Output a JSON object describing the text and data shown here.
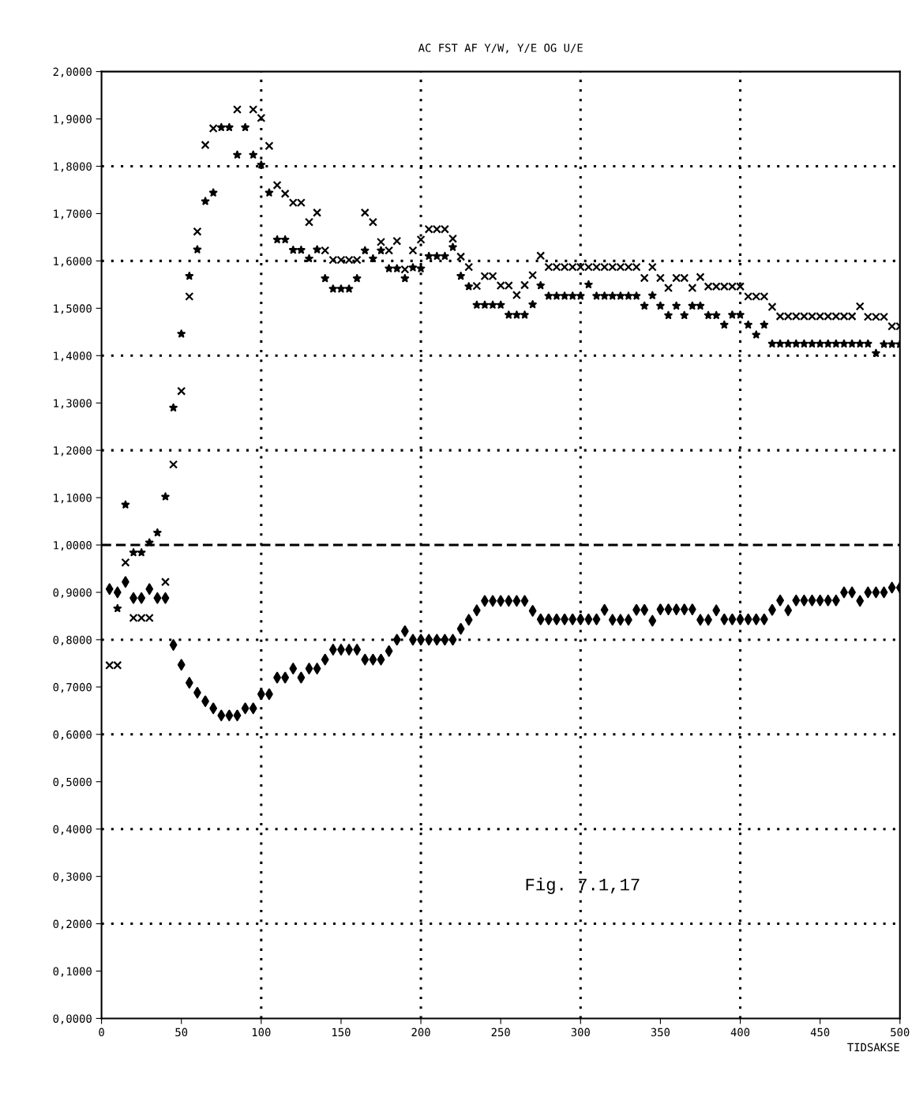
{
  "chart_data": {
    "type": "scatter",
    "title": "AC FST AF Y/W, Y/E OG U/E",
    "xlabel": "TIDSAKSE",
    "annotations": [
      "Fig. 7.1,17"
    ],
    "xlim": [
      0,
      500
    ],
    "ylim": [
      0,
      2
    ],
    "xticks": [
      0,
      50,
      100,
      150,
      200,
      250,
      300,
      350,
      400,
      450,
      500
    ],
    "yticks": [
      {
        "value": 0,
        "label": "0,0000"
      },
      {
        "value": 0.1,
        "label": "0,1000"
      },
      {
        "value": 0.2,
        "label": "0,2000"
      },
      {
        "value": 0.3,
        "label": "0,3000"
      },
      {
        "value": 0.4,
        "label": "0,4000"
      },
      {
        "value": 0.5,
        "label": "0,5000"
      },
      {
        "value": 0.6,
        "label": "0,6000"
      },
      {
        "value": 0.7,
        "label": "0,7000"
      },
      {
        "value": 0.8,
        "label": "0,8000"
      },
      {
        "value": 0.9,
        "label": "0,9000"
      },
      {
        "value": 1.0,
        "label": "1,0000"
      },
      {
        "value": 1.1,
        "label": "1,1000"
      },
      {
        "value": 1.2,
        "label": "1,2000"
      },
      {
        "value": 1.3,
        "label": "1,3000"
      },
      {
        "value": 1.4,
        "label": "1,4000"
      },
      {
        "value": 1.5,
        "label": "1,5000"
      },
      {
        "value": 1.6,
        "label": "1,6000"
      },
      {
        "value": 1.7,
        "label": "1,7000"
      },
      {
        "value": 1.8,
        "label": "1,8000"
      },
      {
        "value": 1.9,
        "label": "1,9000"
      },
      {
        "value": 2.0,
        "label": "2,0000"
      }
    ],
    "grid": false,
    "legend": false,
    "ref_lines": [
      {
        "axis": "y",
        "value": 0.2,
        "color": "#000000",
        "line_style": "dotted"
      },
      {
        "axis": "y",
        "value": 0.4,
        "color": "#000000",
        "line_style": "dotted"
      },
      {
        "axis": "y",
        "value": 0.6,
        "color": "#000000",
        "line_style": "dotted"
      },
      {
        "axis": "y",
        "value": 0.8,
        "color": "#000000",
        "line_style": "dotted"
      },
      {
        "axis": "y",
        "value": 1.0,
        "color": "#000000",
        "line_style": "dashed"
      },
      {
        "axis": "y",
        "value": 1.2,
        "color": "#000000",
        "line_style": "dotted"
      },
      {
        "axis": "y",
        "value": 1.4,
        "color": "#000000",
        "line_style": "dotted"
      },
      {
        "axis": "y",
        "value": 1.6,
        "color": "#000000",
        "line_style": "dotted"
      },
      {
        "axis": "y",
        "value": 1.8,
        "color": "#000000",
        "line_style": "dotted"
      },
      {
        "axis": "x",
        "value": 100,
        "color": "#000000",
        "line_style": "dotted"
      },
      {
        "axis": "x",
        "value": 200,
        "color": "#000000",
        "line_style": "dotted"
      },
      {
        "axis": "x",
        "value": 300,
        "color": "#000000",
        "line_style": "dotted"
      },
      {
        "axis": "x",
        "value": 400,
        "color": "#000000",
        "line_style": "dotted"
      }
    ],
    "series": [
      {
        "color": "#000000",
        "marker": "cross",
        "x": [
          5,
          10,
          15,
          20,
          25,
          30,
          40,
          45,
          50,
          55,
          60,
          65,
          70,
          85,
          95,
          100,
          105,
          110,
          115,
          120,
          125,
          130,
          135,
          140,
          145,
          150,
          155,
          160,
          165,
          170,
          175,
          180,
          185,
          190,
          195,
          200,
          205,
          210,
          215,
          220,
          225,
          230,
          235,
          240,
          245,
          250,
          255,
          260,
          265,
          270,
          275,
          280,
          285,
          290,
          295,
          300,
          305,
          310,
          315,
          320,
          325,
          330,
          335,
          340,
          345,
          350,
          355,
          360,
          365,
          370,
          375,
          380,
          385,
          390,
          395,
          400,
          405,
          410,
          415,
          420,
          425,
          430,
          435,
          440,
          445,
          450,
          455,
          460,
          465,
          470,
          475,
          480,
          485,
          490,
          495,
          500
        ],
        "values": [
          0.746,
          0.746,
          0.963,
          0.846,
          0.846,
          0.846,
          0.922,
          1.17,
          1.325,
          1.525,
          1.662,
          1.845,
          1.88,
          1.92,
          1.92,
          1.902,
          1.843,
          1.76,
          1.742,
          1.723,
          1.723,
          1.682,
          1.702,
          1.622,
          1.602,
          1.602,
          1.602,
          1.602,
          1.702,
          1.682,
          1.64,
          1.622,
          1.642,
          1.582,
          1.622,
          1.645,
          1.667,
          1.667,
          1.667,
          1.647,
          1.609,
          1.587,
          1.547,
          1.568,
          1.568,
          1.548,
          1.548,
          1.528,
          1.549,
          1.57,
          1.611,
          1.587,
          1.587,
          1.587,
          1.587,
          1.587,
          1.587,
          1.587,
          1.587,
          1.587,
          1.587,
          1.587,
          1.587,
          1.564,
          1.587,
          1.564,
          1.543,
          1.564,
          1.564,
          1.543,
          1.566,
          1.546,
          1.546,
          1.546,
          1.546,
          1.546,
          1.525,
          1.525,
          1.525,
          1.503,
          1.483,
          1.483,
          1.483,
          1.483,
          1.483,
          1.483,
          1.483,
          1.483,
          1.483,
          1.483,
          1.504,
          1.482,
          1.482,
          1.482,
          1.462,
          1.462
        ]
      },
      {
        "color": "#000000",
        "marker": "star",
        "x": [
          10,
          15,
          20,
          25,
          30,
          35,
          40,
          45,
          50,
          55,
          60,
          65,
          70,
          75,
          80,
          85,
          90,
          95,
          100,
          105,
          110,
          115,
          120,
          125,
          130,
          135,
          140,
          145,
          150,
          155,
          160,
          165,
          170,
          175,
          180,
          185,
          190,
          195,
          200,
          205,
          210,
          215,
          220,
          225,
          230,
          235,
          240,
          245,
          250,
          255,
          260,
          265,
          270,
          275,
          280,
          285,
          290,
          295,
          300,
          305,
          310,
          315,
          320,
          325,
          330,
          335,
          340,
          345,
          350,
          355,
          360,
          365,
          370,
          375,
          380,
          385,
          390,
          395,
          400,
          405,
          410,
          415,
          420,
          425,
          430,
          435,
          440,
          445,
          450,
          455,
          460,
          465,
          470,
          475,
          480,
          485,
          490,
          495,
          500
        ],
        "values": [
          0.866,
          1.085,
          0.984,
          0.984,
          1.005,
          1.026,
          1.102,
          1.29,
          1.446,
          1.568,
          1.624,
          1.726,
          1.744,
          1.882,
          1.882,
          1.824,
          1.882,
          1.824,
          1.803,
          1.744,
          1.645,
          1.645,
          1.623,
          1.623,
          1.605,
          1.624,
          1.563,
          1.541,
          1.541,
          1.541,
          1.563,
          1.622,
          1.605,
          1.622,
          1.584,
          1.584,
          1.563,
          1.586,
          1.584,
          1.61,
          1.61,
          1.61,
          1.629,
          1.568,
          1.546,
          1.507,
          1.507,
          1.507,
          1.507,
          1.486,
          1.486,
          1.486,
          1.508,
          1.548,
          1.526,
          1.526,
          1.526,
          1.526,
          1.526,
          1.55,
          1.526,
          1.526,
          1.526,
          1.526,
          1.526,
          1.526,
          1.505,
          1.527,
          1.505,
          1.485,
          1.505,
          1.485,
          1.505,
          1.505,
          1.485,
          1.485,
          1.465,
          1.486,
          1.486,
          1.465,
          1.444,
          1.465,
          1.425,
          1.425,
          1.425,
          1.425,
          1.425,
          1.425,
          1.425,
          1.425,
          1.425,
          1.425,
          1.425,
          1.425,
          1.425,
          1.405,
          1.424,
          1.424,
          1.424
        ]
      },
      {
        "color": "#000000",
        "marker": "diamond",
        "x": [
          5,
          10,
          15,
          20,
          25,
          30,
          35,
          40,
          45,
          50,
          55,
          60,
          65,
          70,
          75,
          80,
          85,
          90,
          95,
          100,
          105,
          110,
          115,
          120,
          125,
          130,
          135,
          140,
          145,
          150,
          155,
          160,
          165,
          170,
          175,
          180,
          185,
          190,
          195,
          200,
          205,
          210,
          215,
          220,
          225,
          230,
          235,
          240,
          245,
          250,
          255,
          260,
          265,
          270,
          275,
          280,
          285,
          290,
          295,
          300,
          305,
          310,
          315,
          320,
          325,
          330,
          335,
          340,
          345,
          350,
          355,
          360,
          365,
          370,
          375,
          380,
          385,
          390,
          395,
          400,
          405,
          410,
          415,
          420,
          425,
          430,
          435,
          440,
          445,
          450,
          455,
          460,
          465,
          470,
          475,
          480,
          485,
          490,
          495,
          500
        ],
        "values": [
          0.907,
          0.9,
          0.922,
          0.888,
          0.888,
          0.907,
          0.888,
          0.888,
          0.789,
          0.747,
          0.709,
          0.688,
          0.67,
          0.655,
          0.64,
          0.64,
          0.64,
          0.655,
          0.655,
          0.685,
          0.685,
          0.72,
          0.72,
          0.739,
          0.72,
          0.739,
          0.739,
          0.758,
          0.779,
          0.779,
          0.779,
          0.779,
          0.758,
          0.758,
          0.758,
          0.776,
          0.8,
          0.818,
          0.8,
          0.8,
          0.8,
          0.8,
          0.8,
          0.8,
          0.823,
          0.842,
          0.862,
          0.882,
          0.882,
          0.882,
          0.882,
          0.882,
          0.882,
          0.861,
          0.843,
          0.843,
          0.843,
          0.843,
          0.843,
          0.843,
          0.843,
          0.843,
          0.863,
          0.842,
          0.842,
          0.842,
          0.863,
          0.863,
          0.84,
          0.864,
          0.864,
          0.864,
          0.864,
          0.864,
          0.842,
          0.842,
          0.862,
          0.843,
          0.843,
          0.843,
          0.843,
          0.843,
          0.843,
          0.863,
          0.883,
          0.862,
          0.883,
          0.883,
          0.883,
          0.883,
          0.883,
          0.883,
          0.9,
          0.9,
          0.882,
          0.9,
          0.9,
          0.9,
          0.91,
          0.91
        ]
      }
    ]
  }
}
